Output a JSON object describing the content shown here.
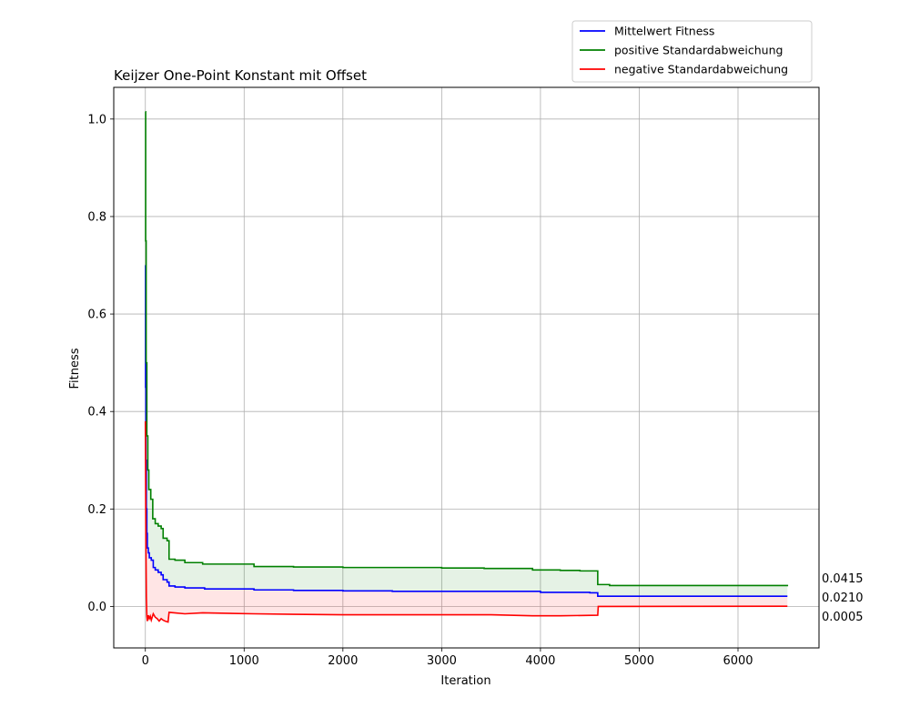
{
  "chart_data": {
    "type": "line",
    "title": "Keijzer One-Point Konstant mit Offset",
    "xlabel": "Iteration",
    "ylabel": "Fitness",
    "xlim": [
      -320,
      6820
    ],
    "ylim": [
      -0.085,
      1.065
    ],
    "xticks": [
      0,
      1000,
      2000,
      3000,
      4000,
      5000,
      6000
    ],
    "yticks": [
      0.0,
      0.2,
      0.4,
      0.6,
      0.8,
      1.0
    ],
    "xtick_labels": [
      "0",
      "1000",
      "2000",
      "3000",
      "4000",
      "5000",
      "6000"
    ],
    "ytick_labels": [
      "0.0",
      "0.2",
      "0.4",
      "0.6",
      "0.8",
      "1.0"
    ],
    "grid": true,
    "legend_position": "above-top-right",
    "series": [
      {
        "name": "Mittelwert Fitness",
        "color": "#0000ff",
        "step": true,
        "x": [
          0,
          2,
          5,
          10,
          15,
          20,
          30,
          40,
          60,
          80,
          100,
          130,
          160,
          180,
          220,
          240,
          300,
          400,
          600,
          1100,
          1500,
          2000,
          2500,
          3000,
          3500,
          3900,
          4000,
          4500,
          4580,
          6500
        ],
        "y": [
          0.7,
          0.45,
          0.3,
          0.2,
          0.15,
          0.12,
          0.11,
          0.1,
          0.095,
          0.08,
          0.075,
          0.07,
          0.065,
          0.055,
          0.05,
          0.042,
          0.04,
          0.038,
          0.036,
          0.034,
          0.033,
          0.032,
          0.031,
          0.031,
          0.031,
          0.031,
          0.029,
          0.028,
          0.021,
          0.021
        ]
      },
      {
        "name": "positive Standardabweichung",
        "color": "#008000",
        "step": true,
        "x": [
          0,
          3,
          8,
          15,
          25,
          35,
          55,
          75,
          100,
          130,
          160,
          180,
          220,
          240,
          300,
          400,
          580,
          1100,
          1500,
          2000,
          2500,
          3000,
          3430,
          3920,
          4200,
          4400,
          4580,
          4700,
          6500
        ],
        "y": [
          1.015,
          0.75,
          0.5,
          0.35,
          0.28,
          0.24,
          0.22,
          0.18,
          0.17,
          0.165,
          0.16,
          0.14,
          0.135,
          0.097,
          0.095,
          0.09,
          0.087,
          0.082,
          0.081,
          0.08,
          0.08,
          0.079,
          0.078,
          0.075,
          0.074,
          0.073,
          0.045,
          0.043,
          0.0415
        ]
      },
      {
        "name": "negative Standardabweichung",
        "color": "#ff0000",
        "step": false,
        "x": [
          0,
          3,
          6,
          10,
          15,
          20,
          30,
          40,
          50,
          60,
          80,
          100,
          120,
          140,
          160,
          180,
          200,
          230,
          240,
          400,
          580,
          1100,
          1500,
          2000,
          2700,
          3500,
          3920,
          4200,
          4580,
          4585,
          6500
        ],
        "y": [
          0.38,
          0.25,
          0.12,
          0.02,
          -0.02,
          -0.03,
          -0.018,
          -0.025,
          -0.02,
          -0.028,
          -0.015,
          -0.022,
          -0.025,
          -0.03,
          -0.025,
          -0.028,
          -0.03,
          -0.032,
          -0.012,
          -0.015,
          -0.013,
          -0.015,
          -0.016,
          -0.017,
          -0.017,
          -0.017,
          -0.019,
          -0.019,
          -0.018,
          0.0,
          0.0005
        ]
      }
    ],
    "annotations": [
      {
        "text": "0.0415",
        "y": 0.0415
      },
      {
        "text": "0.0210",
        "y": 0.021
      },
      {
        "text": "0.0005",
        "y": 0.0005
      }
    ],
    "fill_between": [
      {
        "upper": "positive Standardabweichung",
        "lower": "Mittelwert Fitness",
        "color": "#008000",
        "opacity": 0.1
      },
      {
        "upper": "Mittelwert Fitness",
        "lower": "negative Standardabweichung",
        "color": "#ff0000",
        "opacity": 0.1
      }
    ]
  }
}
